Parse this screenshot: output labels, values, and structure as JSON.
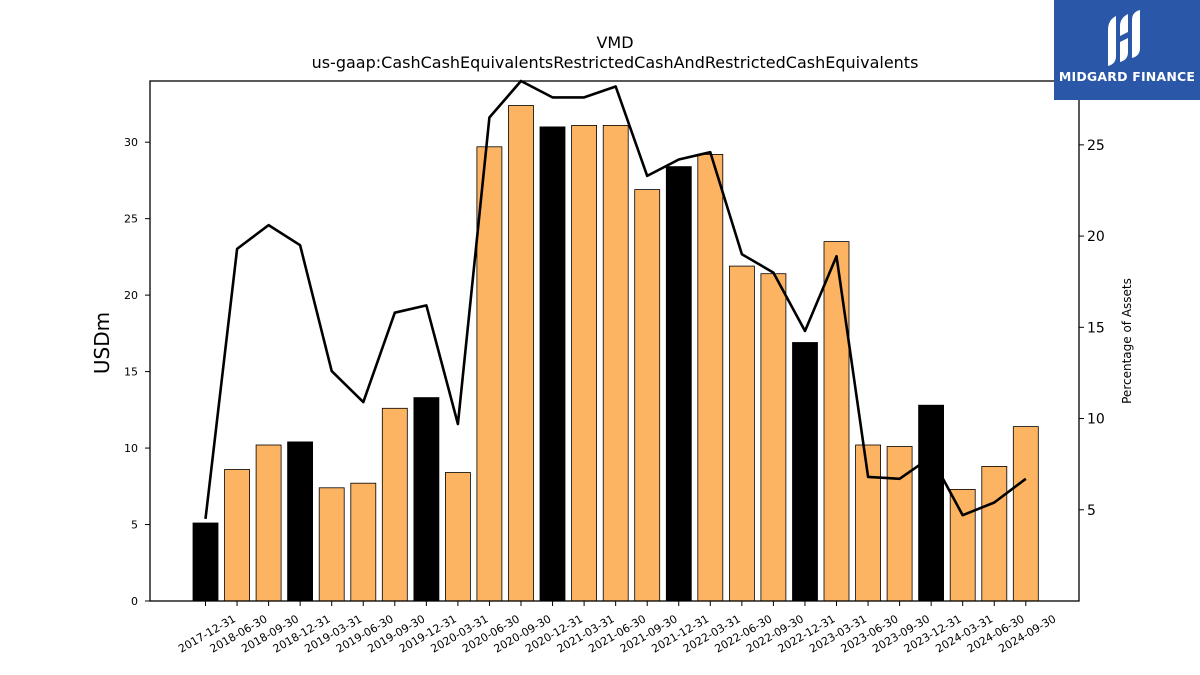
{
  "chart_data": {
    "type": "bar",
    "title": "VMD",
    "subtitle": "us-gaap:CashCashEquivalentsRestrictedCashAndRestrictedCashEquivalents",
    "ylabel": "USDm",
    "y2label": "Percentage of Assets",
    "ylim": [
      0,
      34
    ],
    "y2lim": [
      0,
      28.5
    ],
    "yticks": [
      0,
      5,
      10,
      15,
      20,
      25,
      30
    ],
    "y2ticks": [
      5,
      10,
      15,
      20,
      25
    ],
    "categories": [
      "2017-12-31",
      "2018-06-30",
      "2018-09-30",
      "2018-12-31",
      "2019-03-31",
      "2019-06-30",
      "2019-09-30",
      "2019-12-31",
      "2020-03-31",
      "2020-06-30",
      "2020-09-30",
      "2020-12-31",
      "2021-03-31",
      "2021-06-30",
      "2021-09-30",
      "2021-12-31",
      "2022-03-31",
      "2022-06-30",
      "2022-09-30",
      "2022-12-31",
      "2023-03-31",
      "2023-06-30",
      "2023-09-30",
      "2023-12-31",
      "2024-03-31",
      "2024-06-30",
      "2024-09-30"
    ],
    "series": [
      {
        "type": "bar",
        "values": [
          5.1,
          8.6,
          10.2,
          10.4,
          7.4,
          7.7,
          12.6,
          13.3,
          8.4,
          29.7,
          32.4,
          31.0,
          31.1,
          31.1,
          26.9,
          28.4,
          29.2,
          21.9,
          21.4,
          16.9,
          23.5,
          10.2,
          10.1,
          12.8,
          7.3,
          8.8,
          11.4
        ]
      },
      {
        "type": "line",
        "axis": "right",
        "values": [
          4.5,
          19.3,
          20.6,
          19.5,
          12.6,
          10.9,
          15.8,
          16.2,
          9.7,
          26.5,
          28.5,
          27.6,
          27.6,
          28.2,
          23.3,
          24.2,
          24.6,
          19.0,
          18.0,
          14.8,
          18.9,
          6.8,
          6.7,
          7.9,
          4.7,
          5.4,
          6.7
        ]
      }
    ],
    "year_end_color": "#000000",
    "quarter_color": "#fdb462",
    "line_color": "#000000",
    "grid": false
  },
  "logo": {
    "text": "MIDGARD FINANCE",
    "bg_color": "#2a57a8"
  }
}
